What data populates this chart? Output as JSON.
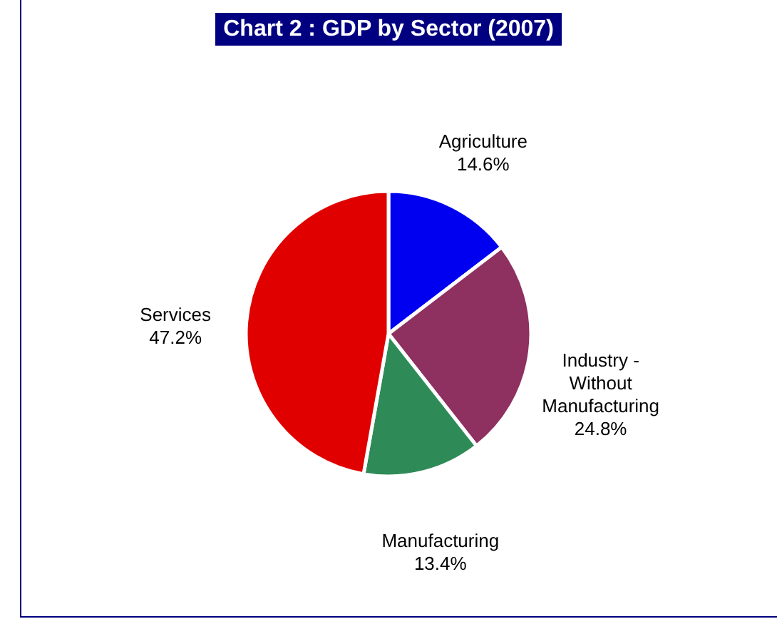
{
  "chart_data": {
    "type": "pie",
    "title": "Chart 2 : GDP by Sector (2007)",
    "categories": [
      "Agriculture",
      "Industry - Without Manufacturing",
      "Manufacturing",
      "Services"
    ],
    "values": [
      14.6,
      24.8,
      13.4,
      47.2
    ],
    "colors": [
      "#0000f0",
      "#8e3060",
      "#2e8b57",
      "#e00000"
    ],
    "value_labels": [
      "14.6%",
      "24.8%",
      "13.4%",
      "47.2%"
    ]
  }
}
